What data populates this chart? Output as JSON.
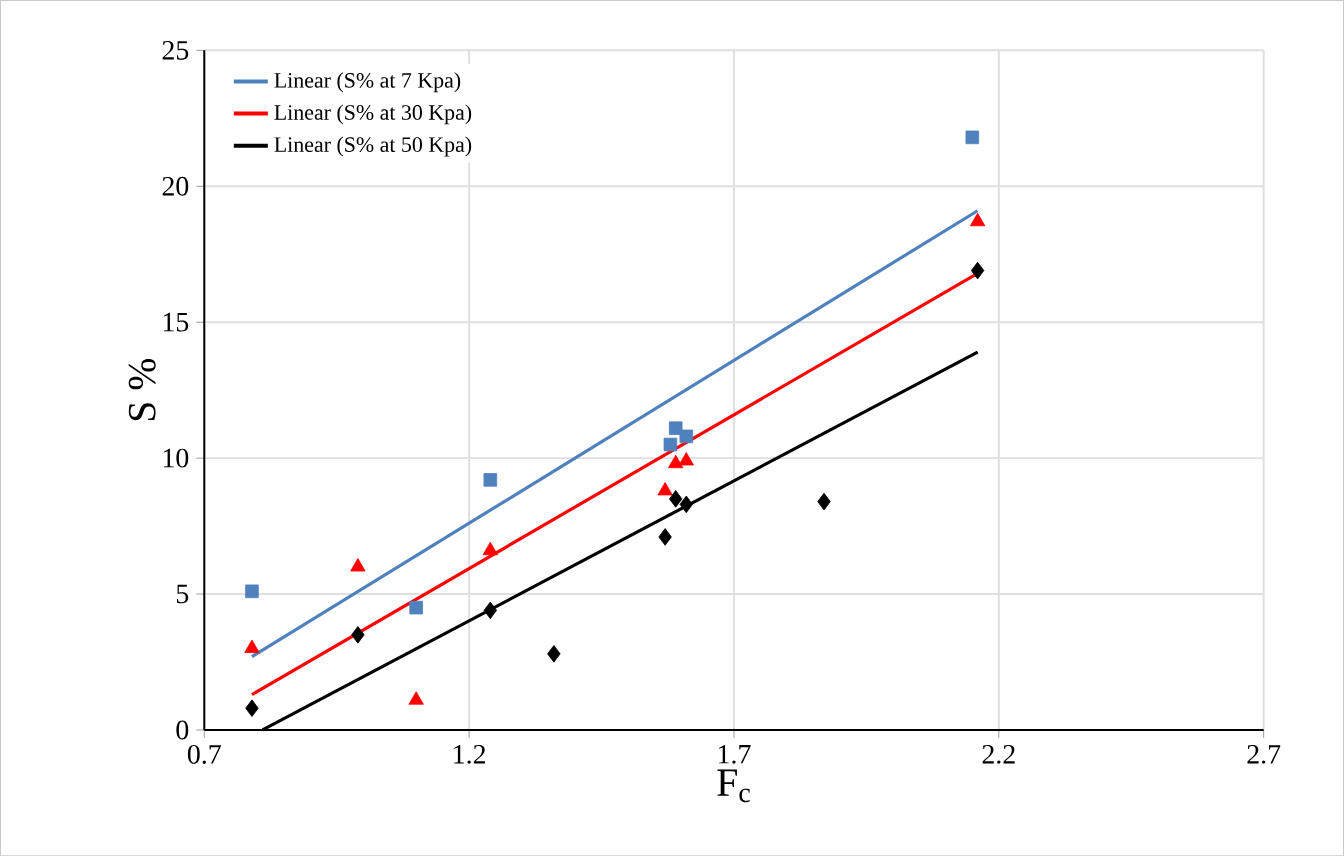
{
  "chart_data": {
    "type": "scatter",
    "xlabel": "F$_{c}$",
    "ylabel": "S %",
    "xlim": [
      0.7,
      2.7
    ],
    "ylim": [
      0,
      25
    ],
    "xticks": [
      0.7,
      1.2,
      1.7,
      2.2,
      2.7
    ],
    "yticks": [
      0,
      5,
      10,
      15,
      20,
      25
    ],
    "grid": true,
    "legend": "top left",
    "series": [
      {
        "marker": "square",
        "color": "#4f81bd",
        "x": [
          0.79,
          1.1,
          1.24,
          1.58,
          1.59,
          1.61,
          2.15
        ],
        "values": [
          5.1,
          4.5,
          9.2,
          10.5,
          11.1,
          10.8,
          21.8
        ]
      },
      {
        "marker": "triangle",
        "color": "#ff0000",
        "x": [
          0.79,
          0.99,
          1.1,
          1.24,
          1.57,
          1.59,
          1.61,
          2.16
        ],
        "values": [
          3.0,
          6.0,
          1.1,
          6.6,
          8.8,
          9.8,
          9.9,
          18.7
        ]
      },
      {
        "marker": "diamond",
        "color": "#000000",
        "x": [
          0.79,
          0.99,
          1.24,
          1.36,
          1.57,
          1.59,
          1.61,
          1.87,
          2.16
        ],
        "values": [
          0.8,
          3.5,
          4.4,
          2.8,
          7.1,
          8.5,
          8.3,
          8.4,
          16.9
        ]
      },
      {
        "type": "line",
        "name": "Linear (S% at 7 Kpa)",
        "color": "#4f81bd",
        "x": [
          0.79,
          2.16
        ],
        "values": [
          2.7,
          19.1
        ]
      },
      {
        "type": "line",
        "name": "Linear (S% at 30 Kpa)",
        "color": "#ff0000",
        "x": [
          0.79,
          2.16
        ],
        "values": [
          1.3,
          16.8
        ]
      },
      {
        "type": "line",
        "name": "Linear (S% at 50 Kpa)",
        "color": "#000000",
        "x": [
          0.81,
          2.16
        ],
        "values": [
          0,
          13.9
        ]
      }
    ]
  }
}
